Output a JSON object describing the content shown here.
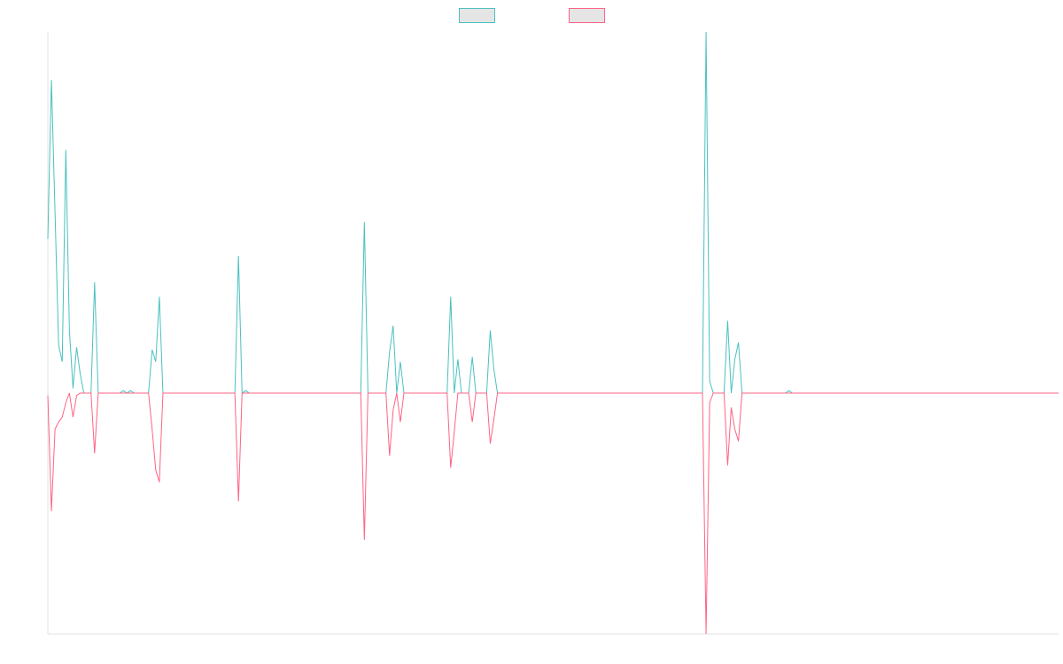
{
  "chart_data": {
    "type": "line",
    "title": "",
    "xlabel": "",
    "ylabel": "",
    "x_count": 282,
    "ylim": [
      -1.0,
      1.5
    ],
    "grid": false,
    "legend_position": "top-center",
    "series": [
      {
        "name": "",
        "color": "#4bc0c0",
        "fill": "#e5e5e5",
        "points": [
          [
            0,
            0.64
          ],
          [
            1,
            1.3
          ],
          [
            3,
            0.2
          ],
          [
            4,
            0.13
          ],
          [
            5,
            1.01
          ],
          [
            6,
            0.26
          ],
          [
            7,
            0.02
          ],
          [
            8,
            0.19
          ],
          [
            9,
            0.08
          ],
          [
            10,
            0.0
          ],
          [
            12,
            0.0
          ],
          [
            13,
            0.46
          ],
          [
            14,
            0.0
          ],
          [
            20,
            0.0
          ],
          [
            21,
            0.01
          ],
          [
            22,
            0.0
          ],
          [
            23,
            0.01
          ],
          [
            24,
            0.0
          ],
          [
            28,
            0.0
          ],
          [
            29,
            0.18
          ],
          [
            30,
            0.13
          ],
          [
            31,
            0.4
          ],
          [
            32,
            0.0
          ],
          [
            52,
            0.0
          ],
          [
            53,
            0.57
          ],
          [
            54,
            0.0
          ],
          [
            55,
            0.01
          ],
          [
            56,
            0.0
          ],
          [
            87,
            0.0
          ],
          [
            88,
            0.71
          ],
          [
            89,
            0.0
          ],
          [
            94,
            0.0
          ],
          [
            95,
            0.17
          ],
          [
            96,
            0.28
          ],
          [
            97,
            0.0
          ],
          [
            98,
            0.13
          ],
          [
            99,
            0.0
          ],
          [
            111,
            0.0
          ],
          [
            112,
            0.4
          ],
          [
            113,
            0.0
          ],
          [
            114,
            0.14
          ],
          [
            115,
            0.0
          ],
          [
            117,
            0.0
          ],
          [
            118,
            0.15
          ],
          [
            119,
            0.0
          ],
          [
            122,
            0.0
          ],
          [
            123,
            0.26
          ],
          [
            124,
            0.1
          ],
          [
            125,
            0.0
          ],
          [
            182,
            0.0
          ],
          [
            183,
            1.5
          ],
          [
            184,
            0.05
          ],
          [
            185,
            0.0
          ],
          [
            188,
            0.0
          ],
          [
            189,
            0.3
          ],
          [
            190,
            0.0
          ],
          [
            191,
            0.14
          ],
          [
            192,
            0.21
          ],
          [
            193,
            0.0
          ],
          [
            205,
            0.0
          ],
          [
            206,
            0.01
          ],
          [
            207,
            0.0
          ],
          [
            281,
            0.0
          ]
        ]
      },
      {
        "name": "",
        "color": "#ff6384",
        "fill": "#e5e5e5",
        "points": [
          [
            0,
            -0.01
          ],
          [
            1,
            -0.49
          ],
          [
            2,
            -0.15
          ],
          [
            3,
            -0.12
          ],
          [
            4,
            -0.1
          ],
          [
            5,
            -0.04
          ],
          [
            6,
            0.0
          ],
          [
            7,
            -0.1
          ],
          [
            8,
            -0.01
          ],
          [
            9,
            0.0
          ],
          [
            12,
            0.0
          ],
          [
            13,
            -0.25
          ],
          [
            14,
            0.0
          ],
          [
            28,
            0.0
          ],
          [
            29,
            -0.15
          ],
          [
            30,
            -0.32
          ],
          [
            31,
            -0.37
          ],
          [
            32,
            0.0
          ],
          [
            52,
            0.0
          ],
          [
            53,
            -0.45
          ],
          [
            54,
            0.0
          ],
          [
            87,
            0.0
          ],
          [
            88,
            -0.61
          ],
          [
            89,
            0.0
          ],
          [
            94,
            0.0
          ],
          [
            95,
            -0.26
          ],
          [
            96,
            -0.07
          ],
          [
            97,
            0.0
          ],
          [
            98,
            -0.12
          ],
          [
            99,
            0.0
          ],
          [
            111,
            0.0
          ],
          [
            112,
            -0.31
          ],
          [
            113,
            -0.16
          ],
          [
            114,
            0.0
          ],
          [
            117,
            0.0
          ],
          [
            118,
            -0.12
          ],
          [
            119,
            0.0
          ],
          [
            122,
            0.0
          ],
          [
            123,
            -0.21
          ],
          [
            124,
            -0.11
          ],
          [
            125,
            0.0
          ],
          [
            182,
            0.0
          ],
          [
            183,
            -1.0
          ],
          [
            184,
            -0.04
          ],
          [
            185,
            0.0
          ],
          [
            188,
            0.0
          ],
          [
            189,
            -0.3
          ],
          [
            190,
            -0.06
          ],
          [
            191,
            -0.15
          ],
          [
            192,
            -0.2
          ],
          [
            193,
            0.0
          ],
          [
            281,
            0.0
          ]
        ]
      }
    ]
  }
}
